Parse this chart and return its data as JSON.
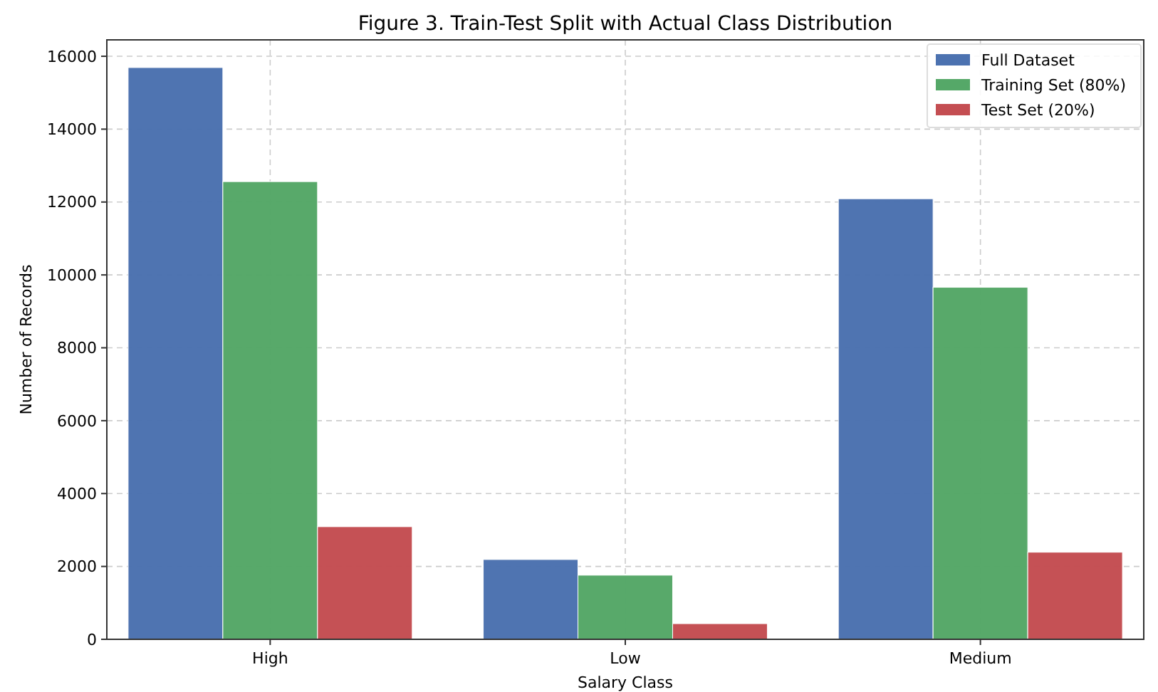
{
  "chart_data": {
    "type": "bar",
    "title": "Figure 3. Train-Test Split with Actual Class Distribution",
    "xlabel": "Salary Class",
    "ylabel": "Number of Records",
    "categories": [
      "High",
      "Low",
      "Medium"
    ],
    "series": [
      {
        "name": "Full Dataset",
        "color": "#4c72b0",
        "values": [
          15690,
          2190,
          12090
        ]
      },
      {
        "name": "Training Set (80%)",
        "color": "#55a868",
        "values": [
          12560,
          1760,
          9660
        ]
      },
      {
        "name": "Test Set (20%)",
        "color": "#c44e52",
        "values": [
          3090,
          430,
          2390
        ]
      }
    ],
    "ylim": [
      0,
      16450
    ],
    "yticks": [
      0,
      2000,
      4000,
      6000,
      8000,
      10000,
      12000,
      14000,
      16000
    ],
    "grid": true,
    "legend": "top right"
  }
}
